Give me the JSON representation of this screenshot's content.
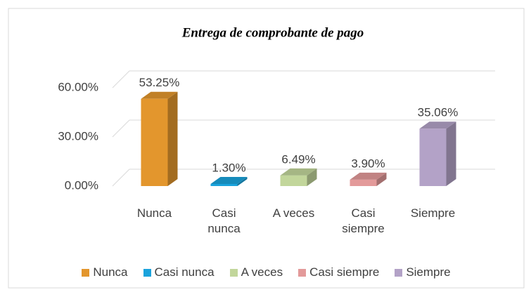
{
  "chart_data": {
    "type": "bar3d",
    "title": "Entrega de comprobante de pago",
    "categories": [
      "Nunca",
      "Casi nunca",
      "A veces",
      "Casi siempre",
      "Siempre"
    ],
    "values": [
      53.25,
      1.3,
      6.49,
      3.9,
      35.06
    ],
    "value_labels": [
      "53.25%",
      "1.30%",
      "6.49%",
      "3.90%",
      "35.06%"
    ],
    "colors": [
      "#e3962d",
      "#1aa3dc",
      "#c2d69b",
      "#e39a9a",
      "#b3a2c7"
    ],
    "ylim": [
      0,
      60
    ],
    "yticks": [
      {
        "value": 0,
        "label": "0.00%"
      },
      {
        "value": 30,
        "label": "30.00%"
      },
      {
        "value": 60,
        "label": "60.00%"
      }
    ],
    "grid": true,
    "legend": "bottom"
  }
}
